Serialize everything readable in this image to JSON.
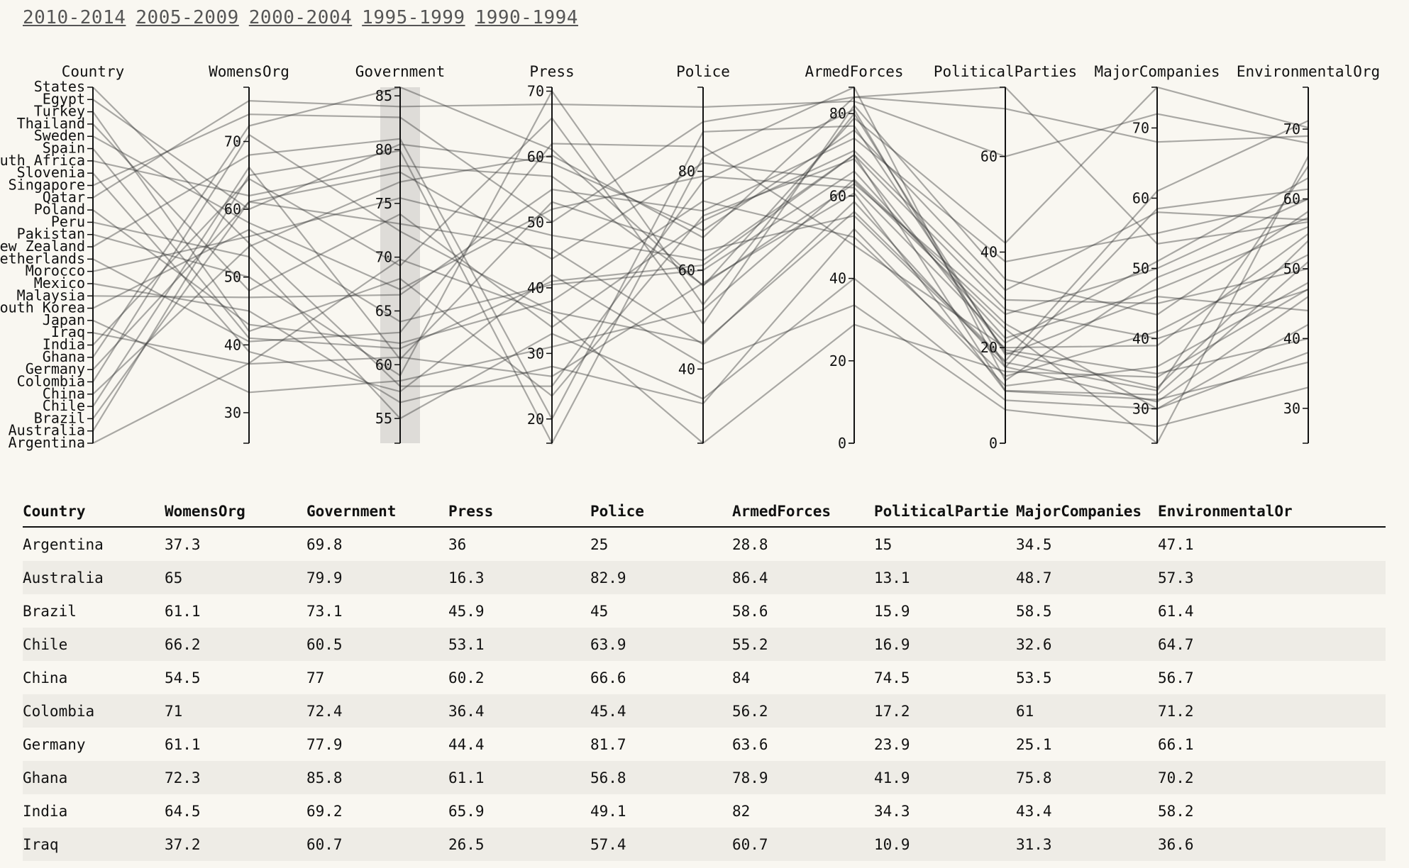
{
  "periods": [
    "2010-2014",
    "2005-2009",
    "2000-2004",
    "1995-1999",
    "1990-1994"
  ],
  "colors": {
    "line": "#333333",
    "brush": "#c9c7c2",
    "background": "#f9f7f1",
    "stripe": "#eeece6"
  },
  "chart_data": {
    "type": "parallel-coordinates",
    "dimensions": [
      "Country",
      "WomensOrg",
      "Government",
      "Press",
      "Police",
      "ArmedForces",
      "PoliticalParties",
      "MajorCompanies",
      "EnvironmentalOrg"
    ],
    "country_axis_labels": [
      "States",
      "Egypt",
      "Turkey",
      "Thailand",
      "Sweden",
      "Spain",
      "South Africa",
      "Slovenia",
      "Singapore",
      "Qatar",
      "Poland",
      "Peru",
      "Pakistan",
      "New Zealand",
      "Netherlands",
      "Morocco",
      "Mexico",
      "Malaysia",
      "South Korea",
      "Japan",
      "Iraq",
      "India",
      "Ghana",
      "Germany",
      "Colombia",
      "China",
      "Chile",
      "Brazil",
      "Australia",
      "Argentina"
    ],
    "axes": {
      "WomensOrg": {
        "domain": [
          25.5,
          78
        ],
        "ticks": [
          30,
          40,
          50,
          60,
          70
        ]
      },
      "Government": {
        "domain": [
          52.7,
          85.8
        ],
        "ticks": [
          55,
          60,
          65,
          70,
          75,
          80,
          85
        ]
      },
      "Press": {
        "domain": [
          16.3,
          70.6
        ],
        "ticks": [
          20,
          30,
          40,
          50,
          60,
          70
        ]
      },
      "Police": {
        "domain": [
          25,
          97
        ],
        "ticks": [
          40,
          60,
          80
        ]
      },
      "ArmedForces": {
        "domain": [
          0,
          86.4
        ],
        "ticks": [
          0,
          20,
          40,
          60,
          80
        ]
      },
      "PoliticalParties": {
        "domain": [
          0,
          74.5
        ],
        "ticks": [
          0,
          20,
          40,
          60
        ]
      },
      "MajorCompanies": {
        "domain": [
          25.1,
          75.8
        ],
        "ticks": [
          30,
          40,
          50,
          60,
          70
        ]
      },
      "EnvironmentalOrg": {
        "domain": [
          25,
          76
        ],
        "ticks": [
          30,
          40,
          50,
          60,
          70
        ]
      }
    },
    "brush": {
      "axis": "Government",
      "extent": [
        52.7,
        85.8
      ]
    },
    "table_headers": [
      "Country",
      "WomensOrg",
      "Government",
      "Press",
      "Police",
      "ArmedForces",
      "PoliticalPartie",
      "MajorCompanies",
      "EnvironmentalOr"
    ],
    "rows": [
      [
        "Argentina",
        "37.3",
        "69.8",
        "36",
        "25",
        "28.8",
        "15",
        "34.5",
        "47.1"
      ],
      [
        "Australia",
        "65",
        "79.9",
        "16.3",
        "82.9",
        "86.4",
        "13.1",
        "48.7",
        "57.3"
      ],
      [
        "Brazil",
        "61.1",
        "73.1",
        "45.9",
        "45",
        "58.6",
        "15.9",
        "58.5",
        "61.4"
      ],
      [
        "Chile",
        "66.2",
        "60.5",
        "53.1",
        "63.9",
        "55.2",
        "16.9",
        "32.6",
        "64.7"
      ],
      [
        "China",
        "54.5",
        "77",
        "60.2",
        "66.6",
        "84",
        "74.5",
        "53.5",
        "56.7"
      ],
      [
        "Colombia",
        "71",
        "72.4",
        "36.4",
        "45.4",
        "56.2",
        "17.2",
        "61",
        "71.2"
      ],
      [
        "Germany",
        "61.1",
        "77.9",
        "44.4",
        "81.7",
        "63.6",
        "23.9",
        "25.1",
        "66.1"
      ],
      [
        "Ghana",
        "72.3",
        "85.8",
        "61.1",
        "56.8",
        "78.9",
        "41.9",
        "75.8",
        "70.2"
      ],
      [
        "India",
        "64.5",
        "69.2",
        "65.9",
        "49.1",
        "82",
        "34.3",
        "43.4",
        "58.2"
      ],
      [
        "Iraq",
        "37.2",
        "60.7",
        "26.5",
        "57.4",
        "60.7",
        "10.9",
        "31.3",
        "36.6"
      ]
    ],
    "extra_lines": [
      [
        "Japan",
        33.0,
        58.5,
        31.0,
        52.0,
        64.0,
        25.0,
        30.0,
        42.0
      ],
      [
        "South Korea",
        57.0,
        64.0,
        40.5,
        60.0,
        66.0,
        22.0,
        47.0,
        56.0
      ],
      [
        "Malaysia",
        47.0,
        66.5,
        55.0,
        72.0,
        74.0,
        38.0,
        55.0,
        60.0
      ],
      [
        "Mexico",
        45.0,
        56.5,
        28.0,
        33.0,
        52.0,
        12.0,
        36.0,
        48.0
      ],
      [
        "Morocco",
        56.0,
        75.5,
        48.0,
        62.0,
        70.0,
        28.0,
        40.0,
        47.0
      ],
      [
        "Netherlands",
        40.5,
        63.0,
        62.0,
        85.0,
        48.0,
        20.0,
        39.0,
        55.0
      ],
      [
        "New Zealand",
        68.0,
        81.0,
        20.0,
        88.0,
        77.0,
        19.0,
        33.0,
        54.0
      ],
      [
        "Pakistan",
        50.0,
        59.0,
        70.0,
        53.0,
        80.0,
        18.5,
        46.0,
        44.0
      ],
      [
        "Peru",
        53.0,
        55.0,
        33.0,
        34.0,
        40.0,
        9.0,
        30.0,
        38.0
      ],
      [
        "Poland",
        43.0,
        62.0,
        38.0,
        74.0,
        50.0,
        14.0,
        41.0,
        52.0
      ],
      [
        "Qatar",
        76.0,
        84.0,
        68.0,
        93.0,
        83.0,
        60.0,
        72.0,
        68.0
      ],
      [
        "Singapore",
        74.0,
        83.0,
        50.0,
        90.0,
        84.0,
        70.0,
        68.0,
        69.0
      ],
      [
        "Slovenia",
        39.0,
        57.5,
        42.0,
        41.0,
        33.5,
        7.0,
        27.5,
        33.0
      ],
      [
        "South Africa",
        62.0,
        78.5,
        57.0,
        57.0,
        63.0,
        27.0,
        50.0,
        60.0
      ],
      [
        "Spain",
        41.0,
        61.5,
        41.0,
        61.0,
        70.0,
        11.0,
        32.0,
        51.0
      ],
      [
        "Sweden",
        58.0,
        67.0,
        52.0,
        79.0,
        62.0,
        21.0,
        51.0,
        63.0
      ],
      [
        "Thailand",
        48.0,
        74.0,
        34.0,
        70.0,
        71.0,
        30.0,
        45.0,
        50.0
      ],
      [
        "Turkey",
        42.0,
        68.0,
        23.5,
        71.0,
        69.0,
        19.5,
        35.0,
        40.0
      ],
      [
        "Egypt",
        60.0,
        80.5,
        59.0,
        68.0,
        76.0,
        32.0,
        58.0,
        57.0
      ],
      [
        "States",
        55.0,
        58.0,
        25.0,
        78.0,
        81.0,
        16.0,
        31.0,
        46.0
      ]
    ]
  }
}
